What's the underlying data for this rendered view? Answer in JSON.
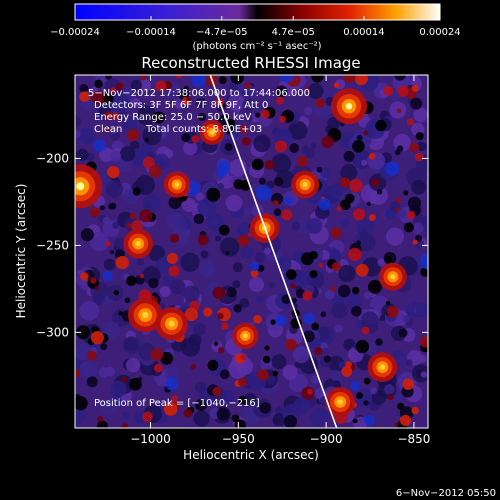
{
  "chart_data": {
    "type": "heatmap",
    "title": "Reconstructed RHESSI Image",
    "xlabel": "Heliocentric X (arcsec)",
    "ylabel": "Heliocentric Y (arcsec)",
    "xlim": [
      -1043,
      -842
    ],
    "ylim": [
      -355,
      -152
    ],
    "x_ticks": [
      -1000,
      -950,
      -900,
      -850
    ],
    "x_tick_labels": [
      "−1000",
      "−950",
      "−900",
      "−850"
    ],
    "y_ticks": [
      -200,
      -250,
      -300
    ],
    "y_tick_labels": [
      "−200",
      "−250",
      "−300"
    ],
    "colorbar": {
      "range": [
        -0.00024,
        0.00024
      ],
      "ticks": [
        -0.00024,
        -0.00014,
        -4.7e-05,
        4.7e-05,
        0.00014,
        0.00024
      ],
      "tick_labels": [
        "−0.00024",
        "−0.00014",
        "−4.7e−05",
        "4.7e−05",
        "0.00014",
        "0.00024"
      ],
      "units_label": "(photons cm⁻² s⁻¹ asec⁻²)"
    },
    "annotations": {
      "time": "5−Nov−2012 17:38:06.000 to 17:44:06.000",
      "detectors": "Detectors: 3F 5F 6F 7F 8F 9F, Att 0",
      "energy": "Energy Range: 25.0 − 50.0 keV",
      "clean": "Clean",
      "counts": "Total counts: 8.80E+03",
      "peak": "Position of Peak = [−1040,−216]"
    },
    "limb_line": [
      [
        -966,
        -152
      ],
      [
        -894,
        -355
      ]
    ],
    "hot_spots": [
      {
        "x": -1040,
        "y": -216,
        "intensity": 1.0
      },
      {
        "x": -887,
        "y": -170,
        "intensity": 0.75
      },
      {
        "x": -1007,
        "y": -249,
        "intensity": 0.55
      },
      {
        "x": -1003,
        "y": -290,
        "intensity": 0.7
      },
      {
        "x": -988,
        "y": -295,
        "intensity": 0.65
      },
      {
        "x": -935,
        "y": -240,
        "intensity": 0.55
      },
      {
        "x": -912,
        "y": -215,
        "intensity": 0.5
      },
      {
        "x": -862,
        "y": -268,
        "intensity": 0.5
      },
      {
        "x": -868,
        "y": -320,
        "intensity": 0.55
      },
      {
        "x": -892,
        "y": -340,
        "intensity": 0.55
      },
      {
        "x": -946,
        "y": -302,
        "intensity": 0.45
      },
      {
        "x": -985,
        "y": -215,
        "intensity": 0.45
      },
      {
        "x": -965,
        "y": -185,
        "intensity": 0.4
      }
    ]
  },
  "footer": {
    "timestamp": "6−Nov−2012 05:50"
  }
}
